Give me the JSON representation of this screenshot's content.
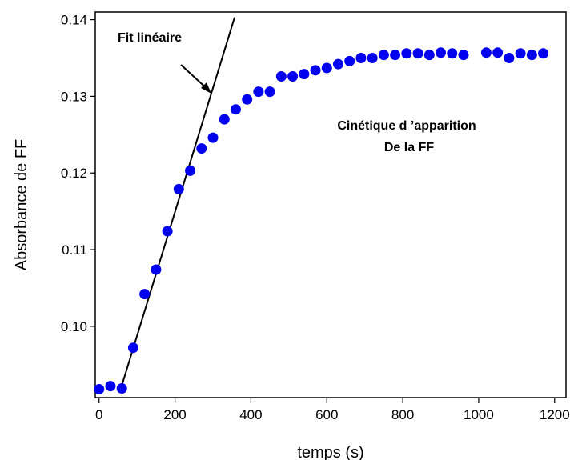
{
  "chart_data": {
    "type": "scatter",
    "xlabel": "temps (s)",
    "ylabel": "Absorbance de FF",
    "xlim": [
      -10,
      1230
    ],
    "ylim": [
      0.0907,
      0.141
    ],
    "x_ticks": [
      0,
      200,
      400,
      600,
      800,
      1000,
      1200
    ],
    "y_ticks": [
      0.1,
      0.11,
      0.12,
      0.13,
      0.14
    ],
    "x_tick_labels": [
      "0",
      "200",
      "400",
      "600",
      "800",
      "1000",
      "1200"
    ],
    "y_tick_labels": [
      "0.10",
      "0.11",
      "0.12",
      "0.13",
      "0.14"
    ],
    "grid": false,
    "marker_color": "#0000ee",
    "series": [
      {
        "x": [
          0,
          30,
          60,
          90,
          120,
          150,
          180,
          210,
          240,
          270,
          300,
          330,
          360,
          390,
          420,
          450,
          480,
          510,
          540,
          570,
          600,
          630,
          660,
          690,
          720,
          750,
          780,
          810,
          840,
          870,
          900,
          930,
          960,
          1020,
          1050,
          1080,
          1110,
          1140,
          1170
        ],
        "y": [
          0.0918,
          0.0922,
          0.0919,
          0.0972,
          0.1042,
          0.1074,
          0.1124,
          0.1179,
          0.1203,
          0.1232,
          0.1246,
          0.127,
          0.1283,
          0.1296,
          0.1306,
          0.1306,
          0.1326,
          0.1326,
          0.1329,
          0.1334,
          0.1337,
          0.1342,
          0.1346,
          0.135,
          0.135,
          0.1354,
          0.1354,
          0.1356,
          0.1356,
          0.1354,
          0.1357,
          0.1356,
          0.1354,
          0.1357,
          0.1357,
          0.135,
          0.1356,
          0.1354,
          0.1356
        ]
      }
    ],
    "fit_line": {
      "label": "Fit linéaire",
      "x": [
        57,
        357
      ],
      "y": [
        0.0918,
        0.1403
      ]
    },
    "annotations": [
      {
        "text": "Fit linéaire"
      },
      {
        "text": "Cinétique d ’apparition"
      },
      {
        "text": "De la FF"
      }
    ]
  }
}
